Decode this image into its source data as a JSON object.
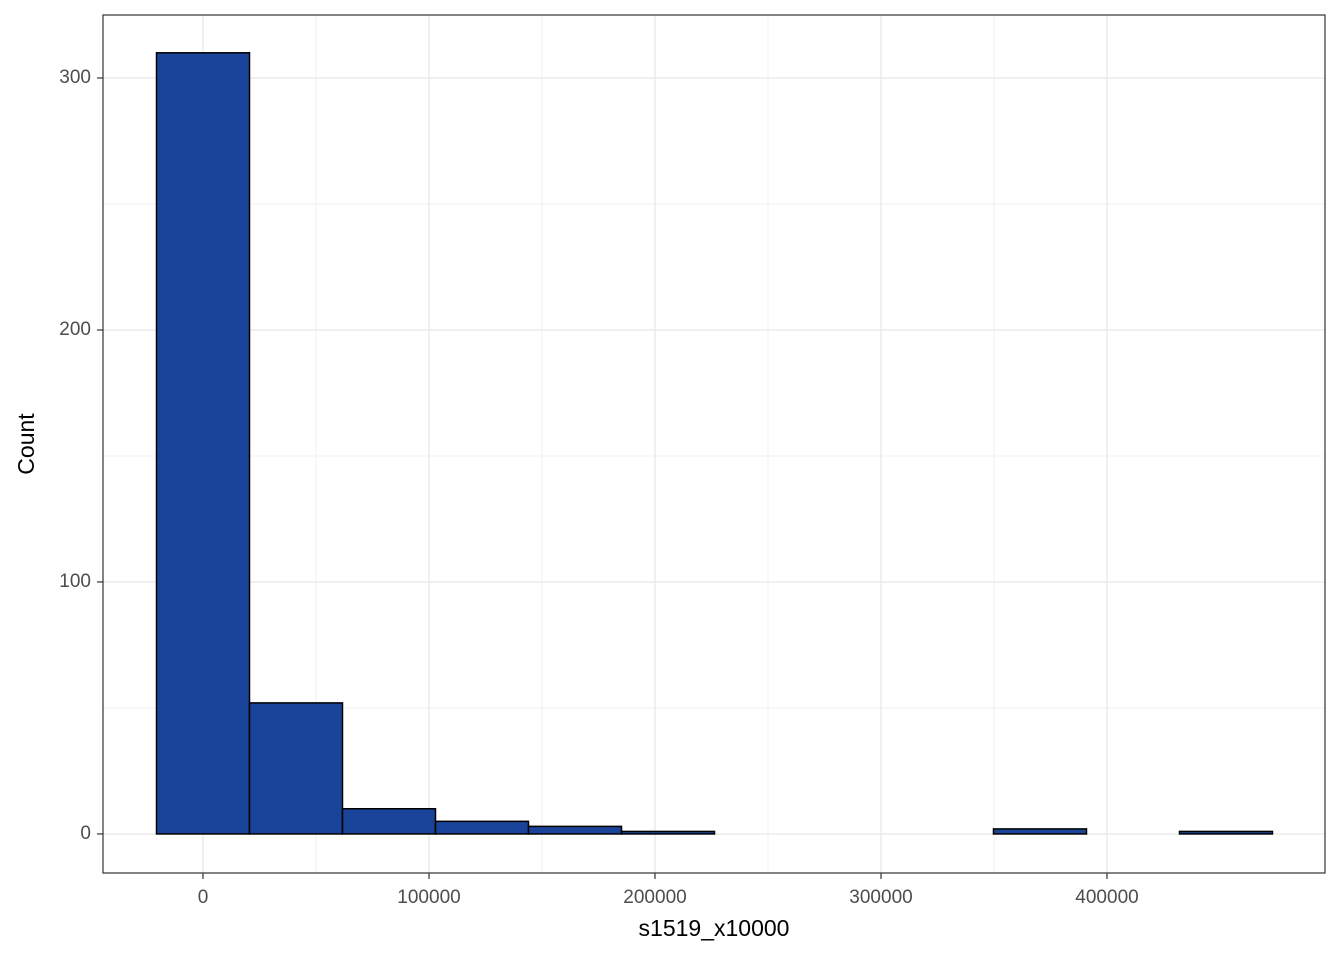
{
  "chart_data": {
    "type": "histogram",
    "xlabel": "s1519_x10000",
    "ylabel": "Count",
    "bins": [
      -20575,
      20575,
      61725,
      102875,
      144025,
      185175,
      226325,
      267475,
      308625,
      349775,
      390925,
      432075,
      473225
    ],
    "values": [
      310,
      52,
      10,
      5,
      3,
      1,
      0,
      0,
      0,
      2,
      0,
      1
    ],
    "color": "#1a4499",
    "xlim": [
      -44248,
      496460
    ],
    "xticks": [
      0,
      100000,
      200000,
      300000,
      400000
    ],
    "ylim": [
      -15.5,
      325
    ],
    "yticks": [
      0,
      100,
      200,
      300
    ],
    "grid": true
  }
}
